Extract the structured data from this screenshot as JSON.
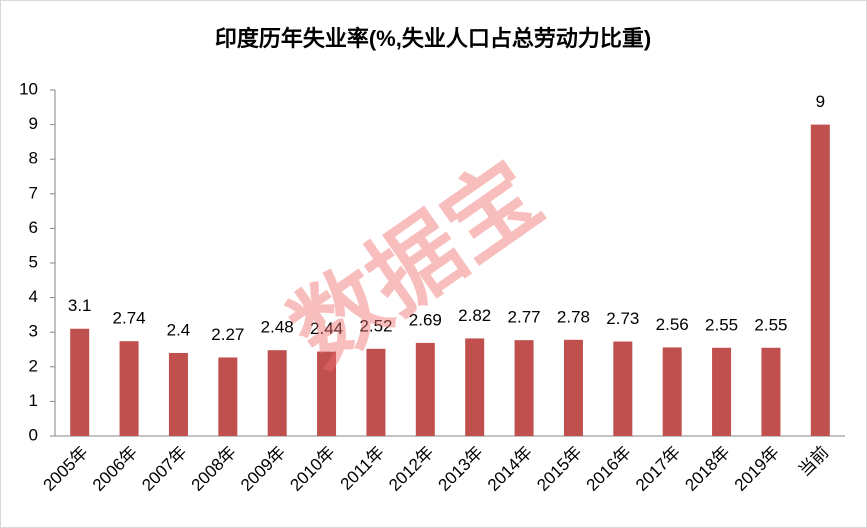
{
  "chart_data": {
    "type": "bar",
    "title": "印度历年失业率(%,失业人口占总劳动力比重)",
    "watermark": "数据宝",
    "categories": [
      "2005年",
      "2006年",
      "2007年",
      "2008年",
      "2009年",
      "2010年",
      "2011年",
      "2012年",
      "2013年",
      "2014年",
      "2015年",
      "2016年",
      "2017年",
      "2018年",
      "2019年",
      "当前"
    ],
    "values": [
      3.1,
      2.74,
      2.4,
      2.27,
      2.48,
      2.44,
      2.52,
      2.69,
      2.82,
      2.77,
      2.78,
      2.73,
      2.56,
      2.55,
      2.55,
      9
    ],
    "color": "#c0504d",
    "ylim": [
      0,
      10
    ],
    "yticks": [
      0,
      1,
      2,
      3,
      4,
      5,
      6,
      7,
      8,
      9,
      10
    ],
    "grid": false
  }
}
